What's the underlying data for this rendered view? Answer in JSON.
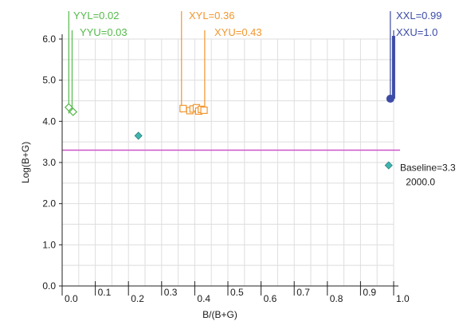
{
  "chart_data": {
    "type": "scatter",
    "xlabel": "B/(B+G)",
    "ylabel": "Log(B+G)",
    "xlim": [
      0.0,
      1.0
    ],
    "ylim": [
      0.0,
      6.0
    ],
    "x_ticks": [
      "0.0",
      "0.1",
      "0.2",
      "0.3",
      "0.4",
      "0.5",
      "0.6",
      "0.7",
      "0.8",
      "0.9",
      "1.0"
    ],
    "y_ticks": [
      "0.0",
      "1.0",
      "2.0",
      "3.0",
      "4.0",
      "5.0",
      "6.0"
    ],
    "grid": true,
    "baseline": {
      "value": 3.3,
      "label": "Baseline=3.3",
      "sublabel": "2000.0",
      "color": "#cc55cc"
    },
    "points": [
      {
        "x": 0.23,
        "y": 3.65,
        "marker": "diamond",
        "color": "#3fb6b0"
      },
      {
        "x": 0.985,
        "y": 2.93,
        "marker": "diamond",
        "color": "#3fb6b0"
      }
    ],
    "groups": [
      {
        "color": "#55b94a",
        "marker": "diamond-open",
        "lower_label": "YYL=0.02",
        "upper_label": "YYU=0.03",
        "lower": 0.02,
        "upper": 0.03,
        "points": [
          {
            "x": 0.02,
            "y": 4.34
          },
          {
            "x": 0.033,
            "y": 4.23
          }
        ]
      },
      {
        "color": "#f2962e",
        "marker": "square-open",
        "lower_label": "XYL=0.36",
        "upper_label": "XYU=0.43",
        "lower": 0.36,
        "upper": 0.43,
        "points": [
          {
            "x": 0.365,
            "y": 4.31
          },
          {
            "x": 0.385,
            "y": 4.26
          },
          {
            "x": 0.395,
            "y": 4.3
          },
          {
            "x": 0.405,
            "y": 4.33
          },
          {
            "x": 0.412,
            "y": 4.25
          },
          {
            "x": 0.42,
            "y": 4.29
          },
          {
            "x": 0.428,
            "y": 4.27
          }
        ]
      },
      {
        "color": "#3c4ca6",
        "marker": "circle-filled",
        "lower_label": "XXL=0.99",
        "upper_label": "XXU=1.0",
        "lower": 0.99,
        "upper": 1.0,
        "points": [
          {
            "x": 0.99,
            "y": 4.55
          }
        ]
      }
    ]
  }
}
